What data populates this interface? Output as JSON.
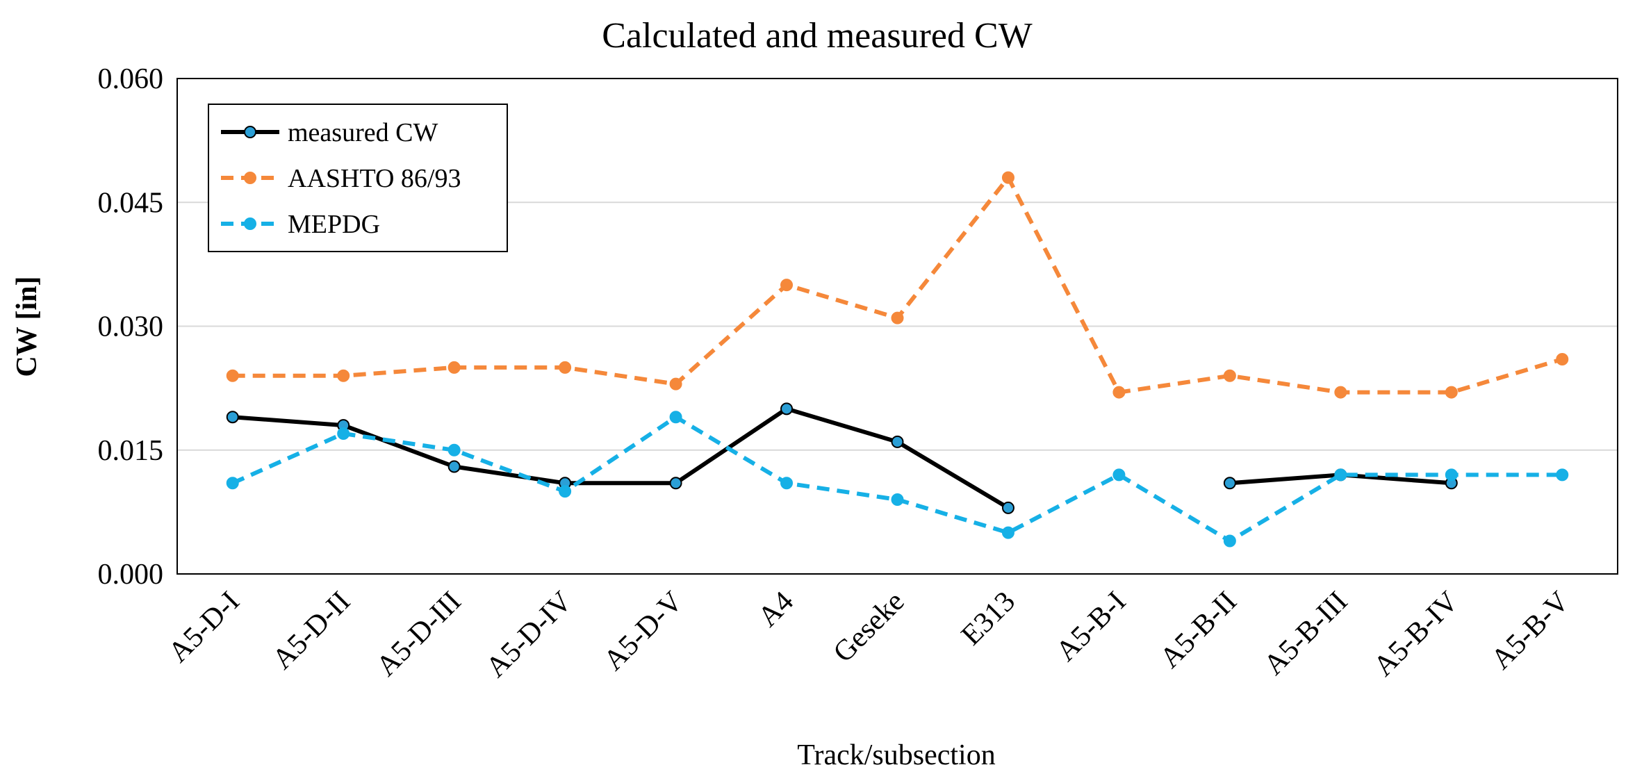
{
  "chart_data": {
    "type": "line",
    "title": "Calculated and measured CW",
    "xlabel": "Track/subsection",
    "ylabel": "CW [in]",
    "ylim": [
      0,
      0.06
    ],
    "yticks": [
      "0.000",
      "0.015",
      "0.030",
      "0.045",
      "0.060"
    ],
    "grid": "horizontal",
    "legend_position": "top-left",
    "categories": [
      "A5-D-I",
      "A5-D-II",
      "A5-D-III",
      "A5-D-IV",
      "A5-D-V",
      "A4",
      "Geseke",
      "E313",
      "A5-B-I",
      "A5-B-II",
      "A5-B-III",
      "A5-B-IV",
      "A5-B-V"
    ],
    "series": [
      {
        "name": "measured CW",
        "color": "#000000",
        "marker_color": "#2b9fd6",
        "line_style": "solid",
        "values": [
          0.019,
          0.018,
          0.013,
          0.011,
          0.011,
          0.02,
          0.016,
          0.008,
          null,
          0.011,
          0.012,
          0.011,
          null
        ]
      },
      {
        "name": "AASHTO 86/93",
        "color": "#f5883a",
        "marker_color": "#f5883a",
        "line_style": "dashed",
        "values": [
          0.024,
          0.024,
          0.025,
          0.025,
          0.023,
          0.035,
          0.031,
          0.048,
          0.022,
          0.024,
          0.022,
          0.022,
          0.026
        ]
      },
      {
        "name": "MEPDG",
        "color": "#16b0e6",
        "marker_color": "#16b0e6",
        "line_style": "dashed",
        "values": [
          0.011,
          0.017,
          0.015,
          0.01,
          0.019,
          0.011,
          0.009,
          0.005,
          0.012,
          0.004,
          0.012,
          0.012,
          0.012
        ]
      }
    ]
  }
}
